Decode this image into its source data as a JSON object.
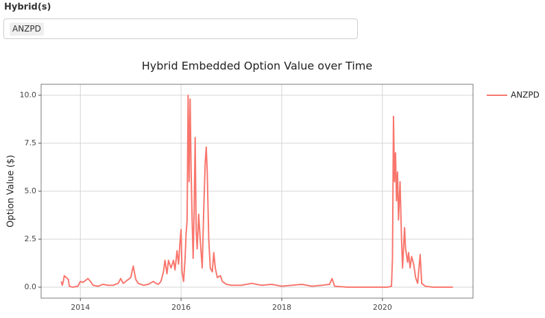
{
  "input": {
    "label": "Hybrid(s)",
    "selected": "ANZPD"
  },
  "chart_data": {
    "type": "line",
    "title": "Hybrid Embedded Option Value over Time",
    "y_label": "Option Value ($)",
    "x": [
      2013.62,
      2013.64,
      2013.66,
      2013.68,
      2013.72,
      2013.76,
      2013.78,
      2013.85,
      2013.95,
      2014.0,
      2014.05,
      2014.1,
      2014.15,
      2014.2,
      2014.25,
      2014.35,
      2014.45,
      2014.55,
      2014.65,
      2014.75,
      2014.8,
      2014.85,
      2014.9,
      2014.95,
      2015.0,
      2015.05,
      2015.1,
      2015.15,
      2015.25,
      2015.35,
      2015.45,
      2015.5,
      2015.55,
      2015.6,
      2015.65,
      2015.68,
      2015.72,
      2015.75,
      2015.8,
      2015.85,
      2015.88,
      2015.92,
      2015.95,
      2015.98,
      2016.0,
      2016.02,
      2016.05,
      2016.08,
      2016.1,
      2016.12,
      2016.14,
      2016.16,
      2016.18,
      2016.2,
      2016.22,
      2016.24,
      2016.26,
      2016.28,
      2016.3,
      2016.32,
      2016.35,
      2016.38,
      2016.42,
      2016.45,
      2016.48,
      2016.5,
      2016.52,
      2016.55,
      2016.58,
      2016.62,
      2016.65,
      2016.68,
      2016.72,
      2016.78,
      2016.82,
      2016.9,
      2017.0,
      2017.2,
      2017.4,
      2017.6,
      2017.8,
      2018.0,
      2018.2,
      2018.4,
      2018.6,
      2018.8,
      2018.95,
      2019.0,
      2019.05,
      2019.3,
      2019.6,
      2019.9,
      2020.1,
      2020.18,
      2020.2,
      2020.22,
      2020.24,
      2020.26,
      2020.28,
      2020.3,
      2020.32,
      2020.35,
      2020.38,
      2020.4,
      2020.44,
      2020.46,
      2020.5,
      2020.52,
      2020.55,
      2020.58,
      2020.62,
      2020.66,
      2020.7,
      2020.75,
      2020.78,
      2020.85,
      2021.0,
      2021.4
    ],
    "series": [
      {
        "name": "ANZPD",
        "color": "#F8766D",
        "values": [
          0.3,
          0.1,
          0.3,
          0.6,
          0.5,
          0.4,
          0.05,
          0.0,
          0.05,
          0.3,
          0.25,
          0.35,
          0.45,
          0.3,
          0.1,
          0.05,
          0.15,
          0.1,
          0.1,
          0.2,
          0.45,
          0.2,
          0.3,
          0.4,
          0.5,
          1.1,
          0.4,
          0.2,
          0.1,
          0.15,
          0.3,
          0.2,
          0.15,
          0.3,
          0.8,
          1.4,
          0.7,
          1.4,
          1.0,
          1.4,
          0.9,
          1.9,
          1.2,
          2.4,
          3.0,
          0.8,
          0.3,
          1.5,
          2.8,
          3.5,
          10.0,
          5.5,
          9.8,
          6.0,
          3.5,
          1.5,
          4.0,
          7.8,
          3.0,
          2.0,
          3.8,
          2.5,
          1.0,
          4.0,
          6.5,
          7.3,
          6.0,
          2.5,
          1.0,
          0.8,
          1.8,
          1.0,
          0.5,
          0.6,
          0.3,
          0.15,
          0.1,
          0.1,
          0.2,
          0.1,
          0.15,
          0.05,
          0.1,
          0.15,
          0.05,
          0.1,
          0.15,
          0.45,
          0.05,
          0.0,
          0.0,
          0.0,
          0.0,
          0.05,
          1.5,
          8.9,
          5.5,
          7.0,
          4.5,
          6.0,
          3.5,
          5.5,
          2.5,
          1.0,
          3.1,
          2.0,
          1.3,
          1.8,
          1.0,
          1.6,
          1.2,
          0.5,
          0.2,
          1.7,
          0.2,
          0.05,
          0.0,
          0.0
        ]
      }
    ],
    "xlim": [
      2013.22,
      2021.8
    ],
    "xticks": [
      2014,
      2016,
      2018,
      2020
    ],
    "ylim": [
      -0.57,
      10.57
    ],
    "yticks": [
      {
        "value": 0,
        "label": "0.0"
      },
      {
        "value": 2.5,
        "label": "2.5"
      },
      {
        "value": 5,
        "label": "5.0"
      },
      {
        "value": 7.5,
        "label": "7.5"
      },
      {
        "value": 10,
        "label": "10.0"
      }
    ],
    "grid": true,
    "legend": "right"
  }
}
